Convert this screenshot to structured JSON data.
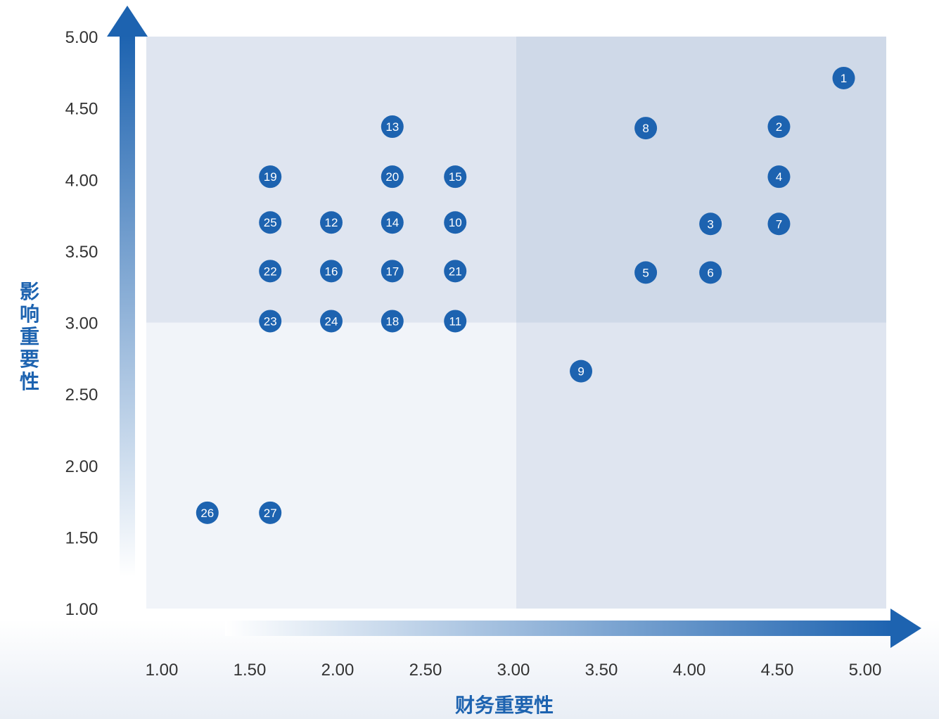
{
  "chart_data": {
    "type": "scatter",
    "xlabel": "财务重要性",
    "ylabel": "影响重要性",
    "xlim": [
      1.0,
      5.0
    ],
    "ylim": [
      1.0,
      5.0
    ],
    "threshold": {
      "x": 3.0,
      "y": 3.0
    },
    "x_ticks": [
      "1.00",
      "1.50",
      "2.00",
      "2.50",
      "3.00",
      "3.50",
      "4.00",
      "4.50",
      "5.00"
    ],
    "y_ticks": [
      "1.00",
      "1.50",
      "2.00",
      "2.50",
      "3.00",
      "3.50",
      "4.00",
      "4.50",
      "5.00"
    ],
    "points": [
      {
        "label": "1",
        "x": 4.77,
        "y": 4.71
      },
      {
        "label": "2",
        "x": 4.42,
        "y": 4.37
      },
      {
        "label": "3",
        "x": 4.05,
        "y": 3.69
      },
      {
        "label": "4",
        "x": 4.42,
        "y": 4.02
      },
      {
        "label": "5",
        "x": 3.7,
        "y": 3.35
      },
      {
        "label": "6",
        "x": 4.05,
        "y": 3.35
      },
      {
        "label": "7",
        "x": 4.42,
        "y": 3.69
      },
      {
        "label": "8",
        "x": 3.7,
        "y": 4.36
      },
      {
        "label": "9",
        "x": 3.35,
        "y": 2.66
      },
      {
        "label": "10",
        "x": 2.67,
        "y": 3.7
      },
      {
        "label": "11",
        "x": 2.67,
        "y": 3.01
      },
      {
        "label": "12",
        "x": 2.0,
        "y": 3.7
      },
      {
        "label": "13",
        "x": 2.33,
        "y": 4.37
      },
      {
        "label": "14",
        "x": 2.33,
        "y": 3.7
      },
      {
        "label": "15",
        "x": 2.67,
        "y": 4.02
      },
      {
        "label": "16",
        "x": 2.0,
        "y": 3.36
      },
      {
        "label": "17",
        "x": 2.33,
        "y": 3.36
      },
      {
        "label": "18",
        "x": 2.33,
        "y": 3.01
      },
      {
        "label": "19",
        "x": 1.67,
        "y": 4.02
      },
      {
        "label": "20",
        "x": 2.33,
        "y": 4.02
      },
      {
        "label": "21",
        "x": 2.67,
        "y": 3.36
      },
      {
        "label": "22",
        "x": 1.67,
        "y": 3.36
      },
      {
        "label": "23",
        "x": 1.67,
        "y": 3.01
      },
      {
        "label": "24",
        "x": 2.0,
        "y": 3.01
      },
      {
        "label": "25",
        "x": 1.67,
        "y": 3.7
      },
      {
        "label": "26",
        "x": 1.33,
        "y": 1.67
      },
      {
        "label": "27",
        "x": 1.67,
        "y": 1.67
      }
    ],
    "colors": {
      "point": "#1d63b0",
      "axis_arrow": "#1d63b0",
      "quadrant_top_right": "#cfd9e8",
      "quadrant_top_left": "#dfe5f0",
      "quadrant_bottom_right": "#dfe5f0",
      "quadrant_bottom_left": "#f1f4f9"
    }
  }
}
